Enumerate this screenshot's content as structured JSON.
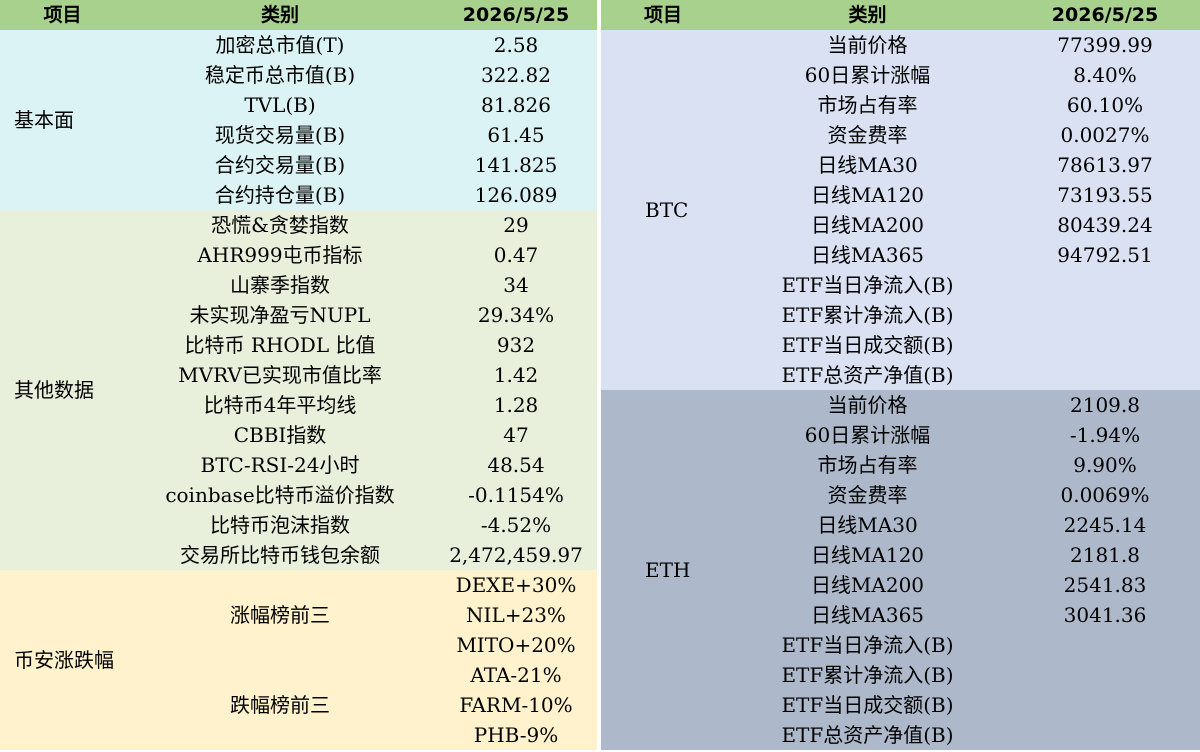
{
  "left": {
    "header": [
      "项目",
      "类别",
      "2026/5/25"
    ],
    "sections": [
      {
        "label": "基本面",
        "color": "#dcf3f5",
        "items": [
          {
            "category": "加密总市值(T)",
            "values": [
              "2.58"
            ]
          },
          {
            "category": "稳定币总市值(B)",
            "values": [
              "322.82"
            ]
          },
          {
            "category": "TVL(B)",
            "values": [
              "81.826"
            ]
          },
          {
            "category": "现货交易量(B)",
            "values": [
              "61.45"
            ]
          },
          {
            "category": "合约交易量(B)",
            "values": [
              "141.825"
            ]
          },
          {
            "category": "合约持仓量(B)",
            "values": [
              "126.089"
            ]
          }
        ]
      },
      {
        "label": "其他数据",
        "color": "#e8f0db",
        "items": [
          {
            "category": "恐慌&贪婪指数",
            "values": [
              "29"
            ]
          },
          {
            "category": "AHR999屯币指标",
            "values": [
              "0.47"
            ]
          },
          {
            "category": "山寨季指数",
            "values": [
              "34"
            ]
          },
          {
            "category": "未实现净盈亏NUPL",
            "values": [
              "29.34%"
            ]
          },
          {
            "category": "比特币 RHODL 比值",
            "values": [
              "932"
            ]
          },
          {
            "category": "MVRV已实现市值比率",
            "values": [
              "1.42"
            ]
          },
          {
            "category": "比特币4年平均线",
            "values": [
              "1.28"
            ]
          },
          {
            "category": "CBBI指数",
            "values": [
              "47"
            ]
          },
          {
            "category": "BTC-RSI-24小时",
            "values": [
              "48.54"
            ]
          },
          {
            "category": "coinbase比特币溢价指数",
            "values": [
              "-0.1154%"
            ]
          },
          {
            "category": "比特币泡沫指数",
            "values": [
              "-4.52%"
            ]
          },
          {
            "category": "交易所比特币钱包余额",
            "values": [
              "2,472,459.97"
            ]
          }
        ]
      },
      {
        "label": "币安涨跌幅",
        "color": "#fff2cc",
        "items": [
          {
            "category": "涨幅榜前三",
            "values": [
              "DEXE+30%",
              "NIL+23%",
              "MITO+20%"
            ]
          },
          {
            "category": "跌幅榜前三",
            "values": [
              "ATA-21%",
              "FARM-10%",
              "PHB-9%"
            ]
          }
        ]
      }
    ]
  },
  "right": {
    "header": [
      "项目",
      "类别",
      "2026/5/25"
    ],
    "sections": [
      {
        "label": "BTC",
        "color": "#d9e1f2",
        "items": [
          {
            "category": "当前价格",
            "values": [
              "77399.99"
            ]
          },
          {
            "category": "60日累计涨幅",
            "values": [
              "8.40%"
            ]
          },
          {
            "category": "市场占有率",
            "values": [
              "60.10%"
            ]
          },
          {
            "category": "资金费率",
            "values": [
              "0.0027%"
            ]
          },
          {
            "category": "日线MA30",
            "values": [
              "78613.97"
            ]
          },
          {
            "category": "日线MA120",
            "values": [
              "73193.55"
            ]
          },
          {
            "category": "日线MA200",
            "values": [
              "80439.24"
            ]
          },
          {
            "category": "日线MA365",
            "values": [
              "94792.51"
            ]
          },
          {
            "category": "ETF当日净流入(B)",
            "values": []
          },
          {
            "category": "ETF累计净流入(B)",
            "values": []
          },
          {
            "category": "ETF当日成交额(B)",
            "values": []
          },
          {
            "category": "ETF总资产净值(B)",
            "values": []
          }
        ]
      },
      {
        "label": "ETH",
        "color": "#adb9ca",
        "items": [
          {
            "category": "当前价格",
            "values": [
              "2109.8"
            ]
          },
          {
            "category": "60日累计涨幅",
            "values": [
              "-1.94%"
            ]
          },
          {
            "category": "市场占有率",
            "values": [
              "9.90%"
            ]
          },
          {
            "category": "资金费率",
            "values": [
              "0.0069%"
            ]
          },
          {
            "category": "日线MA30",
            "values": [
              "2245.14"
            ]
          },
          {
            "category": "日线MA120",
            "values": [
              "2181.8"
            ]
          },
          {
            "category": "日线MA200",
            "values": [
              "2541.83"
            ]
          },
          {
            "category": "日线MA365",
            "values": [
              "3041.36"
            ]
          },
          {
            "category": "ETF当日净流入(B)",
            "values": []
          },
          {
            "category": "ETF累计净流入(B)",
            "values": []
          },
          {
            "category": "ETF当日成交额(B)",
            "values": []
          },
          {
            "category": "ETF总资产净值(B)",
            "values": []
          }
        ]
      }
    ]
  }
}
